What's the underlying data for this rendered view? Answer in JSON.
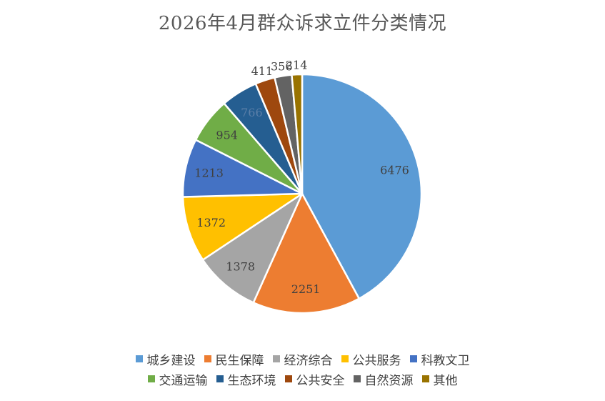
{
  "chart_data": {
    "type": "pie",
    "title": "2026年4月群众诉求立件分类情况",
    "categories": [
      "城乡建设",
      "民生保障",
      "经济综合",
      "公共服务",
      "科教文卫",
      "交通运输",
      "生态环境",
      "公共安全",
      "自然资源",
      "其他"
    ],
    "values": [
      6476,
      2251,
      1378,
      1372,
      1213,
      954,
      766,
      411,
      356,
      214
    ],
    "colors": [
      "#5B9BD5",
      "#ED7D31",
      "#A5A5A5",
      "#FFC000",
      "#4472C4",
      "#70AD47",
      "#255E91",
      "#9E480E",
      "#636363",
      "#997300"
    ],
    "start_angle": "12 o'clock, clockwise",
    "legend_position": "bottom"
  },
  "legend": {
    "rows": [
      [
        0,
        1,
        2,
        3,
        4
      ],
      [
        5,
        6,
        7,
        8,
        9
      ]
    ]
  }
}
